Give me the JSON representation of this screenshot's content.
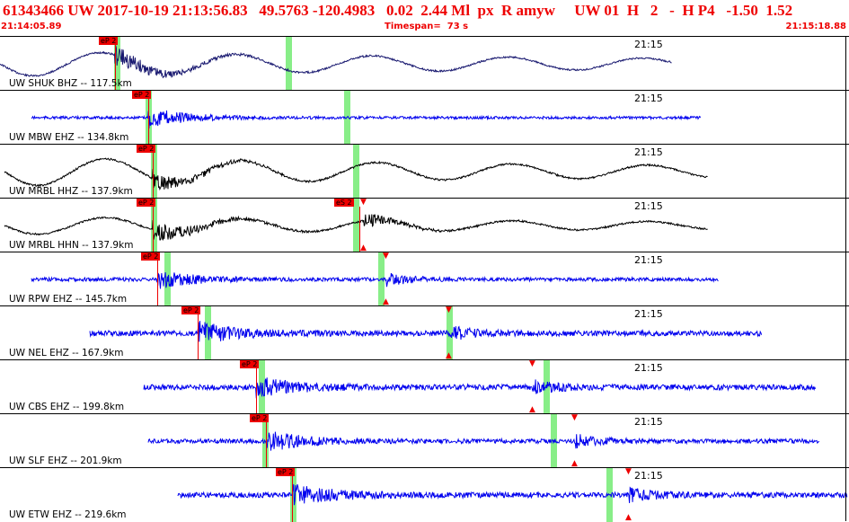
{
  "header": {
    "title": "61343466 UW 2017-10-19 21:13:56.83   49.5763 -120.4983   0.02  2.44 Ml  px  R amyw     UW 01  H   2   -  H P4   -1.50  1.52",
    "start_time": "21:14:05.89",
    "timespan": "Timespan=  73 s",
    "end_time": "21:15:18.88",
    "text_color": "#ee0000"
  },
  "time_tick_label": "21:15",
  "phase_label_ep": "eP 2",
  "phase_label_es": "eS 2",
  "colors": {
    "trace_black": "#000000",
    "trace_blue": "#0000ee",
    "trace_navy": "#191970",
    "pick_red": "#ee0000",
    "window_green": "#88ee88"
  },
  "stations": [
    {
      "label": "UW SHUK BHZ -- 117.5km",
      "color": "navy",
      "style": "longwave",
      "has_es": false
    },
    {
      "label": "UW MBW EHZ -- 134.8km",
      "color": "blue",
      "style": "burst",
      "has_es": false
    },
    {
      "label": "UW MRBL HHZ -- 137.9km",
      "color": "black",
      "style": "longwave",
      "has_es": false
    },
    {
      "label": "UW MRBL HHN -- 137.9km",
      "color": "black",
      "style": "longwave",
      "has_es": true
    },
    {
      "label": "UW RPW EHZ -- 145.7km",
      "color": "blue",
      "style": "burst",
      "has_es": false
    },
    {
      "label": "UW NEL EHZ -- 167.9km",
      "color": "blue",
      "style": "burst",
      "has_es": false
    },
    {
      "label": "UW CBS EHZ -- 199.8km",
      "color": "blue",
      "style": "burst",
      "has_es": false
    },
    {
      "label": "UW SLF EHZ -- 201.9km",
      "color": "blue",
      "style": "burst",
      "has_es": false
    },
    {
      "label": "UW ETW EHZ -- 219.6km",
      "color": "blue",
      "style": "burst",
      "has_es": false
    }
  ]
}
